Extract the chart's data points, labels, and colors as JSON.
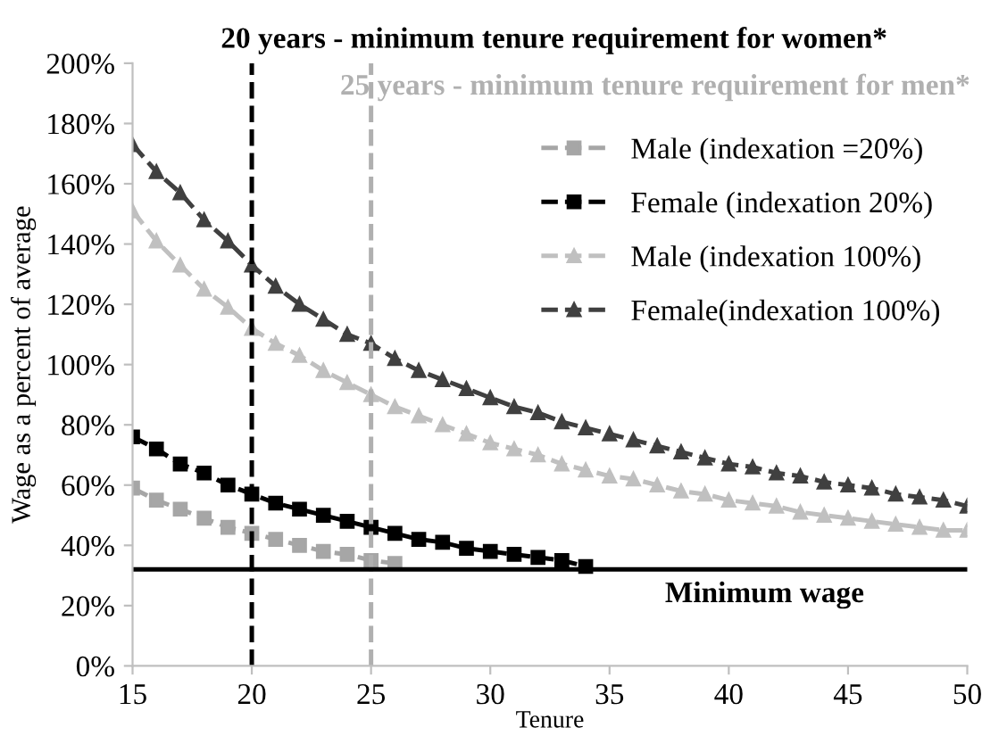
{
  "chart_data": {
    "type": "line",
    "xlabel": "Tenure",
    "ylabel": "Wage as a percent of average",
    "xlim": [
      15,
      50
    ],
    "ylim": [
      0,
      200
    ],
    "xticks": [
      15,
      20,
      25,
      30,
      35,
      40,
      45,
      50
    ],
    "yticks": [
      {
        "value": 0,
        "label": "0%"
      },
      {
        "value": 20,
        "label": "20%"
      },
      {
        "value": 40,
        "label": "40%"
      },
      {
        "value": 60,
        "label": "60%"
      },
      {
        "value": 80,
        "label": "80%"
      },
      {
        "value": 100,
        "label": "100%"
      },
      {
        "value": 120,
        "label": "120%"
      },
      {
        "value": 140,
        "label": "140%"
      },
      {
        "value": 160,
        "label": "160%"
      },
      {
        "value": 180,
        "label": "180%"
      },
      {
        "value": 200,
        "label": "200%"
      }
    ],
    "grid": false,
    "legend": "right",
    "line_style": "dashed",
    "series": [
      {
        "name": "Male (indexation =20%)",
        "color": "#a6a6a6",
        "marker": "square",
        "x": [
          15,
          16,
          17,
          18,
          19,
          20,
          21,
          22,
          23,
          24,
          25,
          26
        ],
        "values": [
          59,
          55,
          52,
          49,
          46,
          44,
          42,
          40,
          38,
          37,
          35,
          34
        ]
      },
      {
        "name": "Female (indexation 20%)",
        "color": "#000000",
        "marker": "square",
        "x": [
          15,
          16,
          17,
          18,
          19,
          20,
          21,
          22,
          23,
          24,
          25,
          26,
          27,
          28,
          29,
          30,
          31,
          32,
          33,
          34
        ],
        "values": [
          76,
          72,
          67,
          64,
          60,
          57,
          54,
          52,
          50,
          48,
          46,
          44,
          42,
          41,
          39,
          38,
          37,
          36,
          35,
          33
        ]
      },
      {
        "name": "Male (indexation 100%)",
        "color": "#c0c0c0",
        "marker": "triangle",
        "x": [
          15,
          16,
          17,
          18,
          19,
          20,
          21,
          22,
          23,
          24,
          25,
          26,
          27,
          28,
          29,
          30,
          31,
          32,
          33,
          34,
          35,
          36,
          37,
          38,
          39,
          40,
          41,
          42,
          43,
          44,
          45,
          46,
          47,
          48,
          49,
          50
        ],
        "values": [
          151,
          141,
          133,
          125,
          119,
          112,
          107,
          103,
          98,
          94,
          90,
          86,
          83,
          80,
          77,
          74,
          72,
          70,
          67,
          65,
          63,
          62,
          60,
          58,
          57,
          55,
          54,
          53,
          51,
          50,
          49,
          48,
          47,
          46,
          45,
          45
        ]
      },
      {
        "name": "Female(indexation 100%)",
        "color": "#404040",
        "marker": "triangle",
        "x": [
          15,
          16,
          17,
          18,
          19,
          20,
          21,
          22,
          23,
          24,
          25,
          26,
          27,
          28,
          29,
          30,
          31,
          32,
          33,
          34,
          35,
          36,
          37,
          38,
          39,
          40,
          41,
          42,
          43,
          44,
          45,
          46,
          47,
          48,
          49,
          50
        ],
        "values": [
          173,
          164,
          157,
          148,
          141,
          133,
          126,
          120,
          115,
          110,
          107,
          102,
          98,
          95,
          92,
          89,
          86,
          84,
          81,
          79,
          77,
          75,
          73,
          71,
          69,
          67,
          66,
          64,
          63,
          61,
          60,
          59,
          57,
          56,
          55,
          53
        ]
      }
    ],
    "ref_lines": [
      {
        "axis": "x",
        "value": 20,
        "label": "20 years - minimum tenure requirement for women*",
        "color": "#000000",
        "line_style": "dashed"
      },
      {
        "axis": "x",
        "value": 25,
        "label": "25 years - minimum tenure requirement for men*",
        "color": "#b0b0b0",
        "line_style": "dashed"
      },
      {
        "axis": "y",
        "value": 32,
        "label": "Minimum wage",
        "color": "#000000",
        "line_style": "solid"
      }
    ]
  }
}
